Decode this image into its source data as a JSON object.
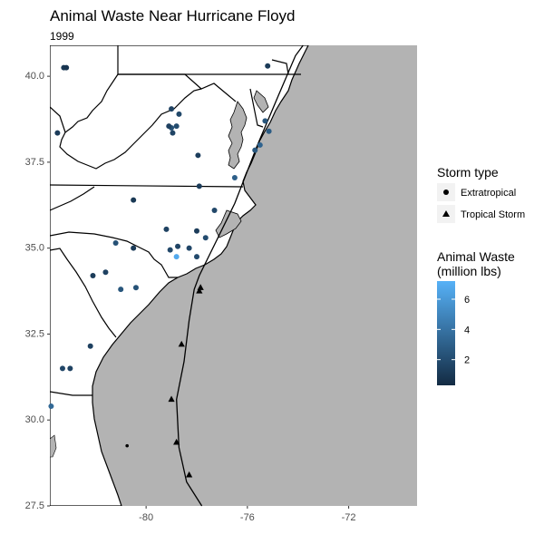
{
  "chart_data": {
    "type": "scatter",
    "title": "Animal Waste Near Hurricane Floyd",
    "subtitle": "1999",
    "xlabel": "",
    "ylabel": "",
    "xlim": [
      -83.8,
      -69.3
    ],
    "ylim": [
      27.5,
      40.9
    ],
    "x_ticks": [
      -80,
      -76,
      -72
    ],
    "y_ticks": [
      27.5,
      30.0,
      32.5,
      35.0,
      37.5,
      40.0
    ],
    "grid": false,
    "background": {
      "land": "#ffffff",
      "ocean": "#b3b3b3"
    },
    "storm_track": [
      {
        "lon": -77.8,
        "lat": 27.5
      },
      {
        "lon": -78.4,
        "lat": 28.2
      },
      {
        "lon": -78.7,
        "lat": 29.2
      },
      {
        "lon": -78.8,
        "lat": 30.6
      },
      {
        "lon": -78.5,
        "lat": 31.7
      },
      {
        "lon": -78.3,
        "lat": 32.9
      },
      {
        "lon": -78.1,
        "lat": 33.8
      },
      {
        "lon": -77.9,
        "lat": 34.2
      },
      {
        "lon": -77.3,
        "lat": 35.1
      },
      {
        "lon": -76.5,
        "lat": 36.3
      },
      {
        "lon": -75.6,
        "lat": 38.0
      },
      {
        "lon": -74.8,
        "lat": 39.4
      },
      {
        "lon": -74.1,
        "lat": 40.6
      },
      {
        "lon": -73.8,
        "lat": 40.9
      }
    ],
    "storm_points": [
      {
        "lon": -78.3,
        "lat": 28.4,
        "type": "Tropical Storm"
      },
      {
        "lon": -78.8,
        "lat": 29.35,
        "type": "Tropical Storm"
      },
      {
        "lon": -79.0,
        "lat": 30.6,
        "type": "Tropical Storm"
      },
      {
        "lon": -78.6,
        "lat": 32.2,
        "type": "Tropical Storm"
      },
      {
        "lon": -77.9,
        "lat": 33.75,
        "type": "Tropical Storm"
      },
      {
        "lon": -77.85,
        "lat": 33.85,
        "type": "Tropical Storm"
      },
      {
        "lon": -80.75,
        "lat": 29.25,
        "type": "Extratropical"
      }
    ],
    "facilities": [
      {
        "lon": -83.25,
        "lat": 40.25,
        "waste": 1.0
      },
      {
        "lon": -83.15,
        "lat": 40.25,
        "waste": 0.8
      },
      {
        "lon": -83.5,
        "lat": 38.35,
        "waste": 1.2
      },
      {
        "lon": -79.0,
        "lat": 39.05,
        "waste": 1.5
      },
      {
        "lon": -78.7,
        "lat": 38.9,
        "waste": 1.8
      },
      {
        "lon": -78.8,
        "lat": 38.55,
        "waste": 2.0
      },
      {
        "lon": -79.0,
        "lat": 38.5,
        "waste": 2.2
      },
      {
        "lon": -78.95,
        "lat": 38.35,
        "waste": 1.6
      },
      {
        "lon": -79.1,
        "lat": 38.55,
        "waste": 1.4
      },
      {
        "lon": -77.95,
        "lat": 37.7,
        "waste": 1.3
      },
      {
        "lon": -77.9,
        "lat": 36.8,
        "waste": 1.2
      },
      {
        "lon": -76.5,
        "lat": 37.05,
        "waste": 3.0
      },
      {
        "lon": -75.2,
        "lat": 40.3,
        "waste": 1.1
      },
      {
        "lon": -75.3,
        "lat": 38.7,
        "waste": 2.5
      },
      {
        "lon": -75.15,
        "lat": 38.4,
        "waste": 2.8
      },
      {
        "lon": -75.5,
        "lat": 38.0,
        "waste": 3.2
      },
      {
        "lon": -75.7,
        "lat": 37.85,
        "waste": 2.6
      },
      {
        "lon": -80.5,
        "lat": 36.4,
        "waste": 1.0
      },
      {
        "lon": -77.3,
        "lat": 36.1,
        "waste": 1.8
      },
      {
        "lon": -79.2,
        "lat": 35.55,
        "waste": 1.5
      },
      {
        "lon": -78.0,
        "lat": 35.5,
        "waste": 1.2
      },
      {
        "lon": -77.65,
        "lat": 35.3,
        "waste": 2.0
      },
      {
        "lon": -78.3,
        "lat": 35.0,
        "waste": 1.7
      },
      {
        "lon": -78.75,
        "lat": 35.05,
        "waste": 1.6
      },
      {
        "lon": -79.05,
        "lat": 34.95,
        "waste": 1.8
      },
      {
        "lon": -78.8,
        "lat": 34.75,
        "waste": 6.8
      },
      {
        "lon": -78.0,
        "lat": 34.75,
        "waste": 1.9
      },
      {
        "lon": -81.2,
        "lat": 35.15,
        "waste": 2.2
      },
      {
        "lon": -80.5,
        "lat": 35.0,
        "waste": 1.1
      },
      {
        "lon": -81.6,
        "lat": 34.3,
        "waste": 1.5
      },
      {
        "lon": -82.1,
        "lat": 34.2,
        "waste": 1.2
      },
      {
        "lon": -81.0,
        "lat": 33.8,
        "waste": 2.5
      },
      {
        "lon": -80.4,
        "lat": 33.85,
        "waste": 2.3
      },
      {
        "lon": -82.2,
        "lat": 32.15,
        "waste": 1.4
      },
      {
        "lon": -83.0,
        "lat": 31.5,
        "waste": 1.5
      },
      {
        "lon": -83.3,
        "lat": 31.5,
        "waste": 1.7
      },
      {
        "lon": -83.75,
        "lat": 30.4,
        "waste": 3.5
      }
    ],
    "legends": {
      "shape": {
        "title": "Storm type",
        "entries": [
          "Extratropical",
          "Tropical Storm"
        ]
      },
      "color": {
        "title_line1": "Animal Waste",
        "title_line2": "(million lbs)",
        "ticks": [
          2,
          4,
          6
        ],
        "range": [
          0.3,
          7.2
        ],
        "low_color": "#132b43",
        "high_color": "#56b1f7"
      },
      "placement": "right"
    }
  }
}
